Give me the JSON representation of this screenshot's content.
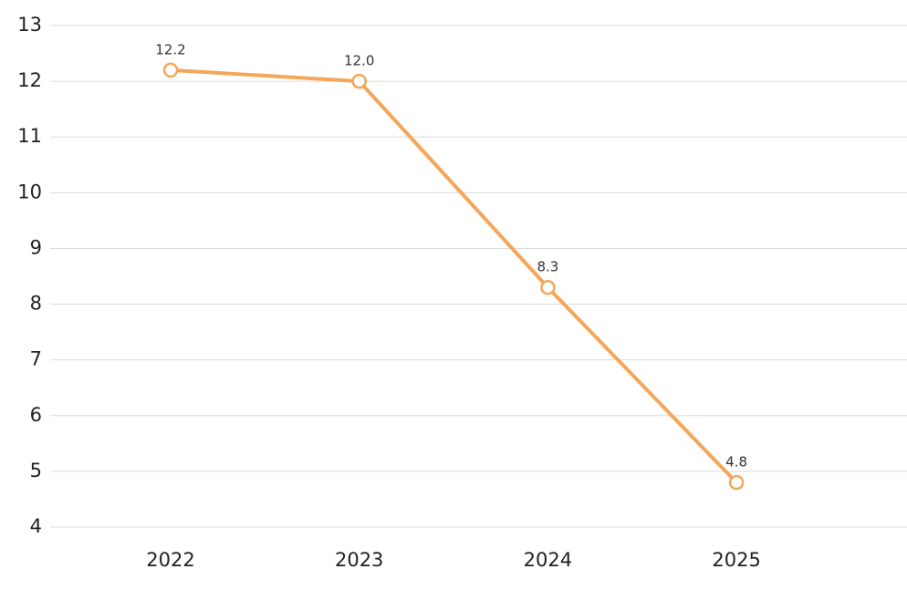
{
  "chart_data": {
    "type": "line",
    "categories": [
      "2022",
      "2023",
      "2024",
      "2025"
    ],
    "series": [
      {
        "color": "#f4a65a",
        "values": [
          12.2,
          12,
          8.3,
          4.8
        ],
        "value_labels": [
          "12.2",
          "12.0",
          "8.3",
          "4.8"
        ]
      }
    ],
    "ylim": [
      4,
      13
    ],
    "yticks": [
      4,
      5,
      6,
      7,
      8,
      9,
      10,
      11,
      12,
      13
    ],
    "grid": true
  }
}
